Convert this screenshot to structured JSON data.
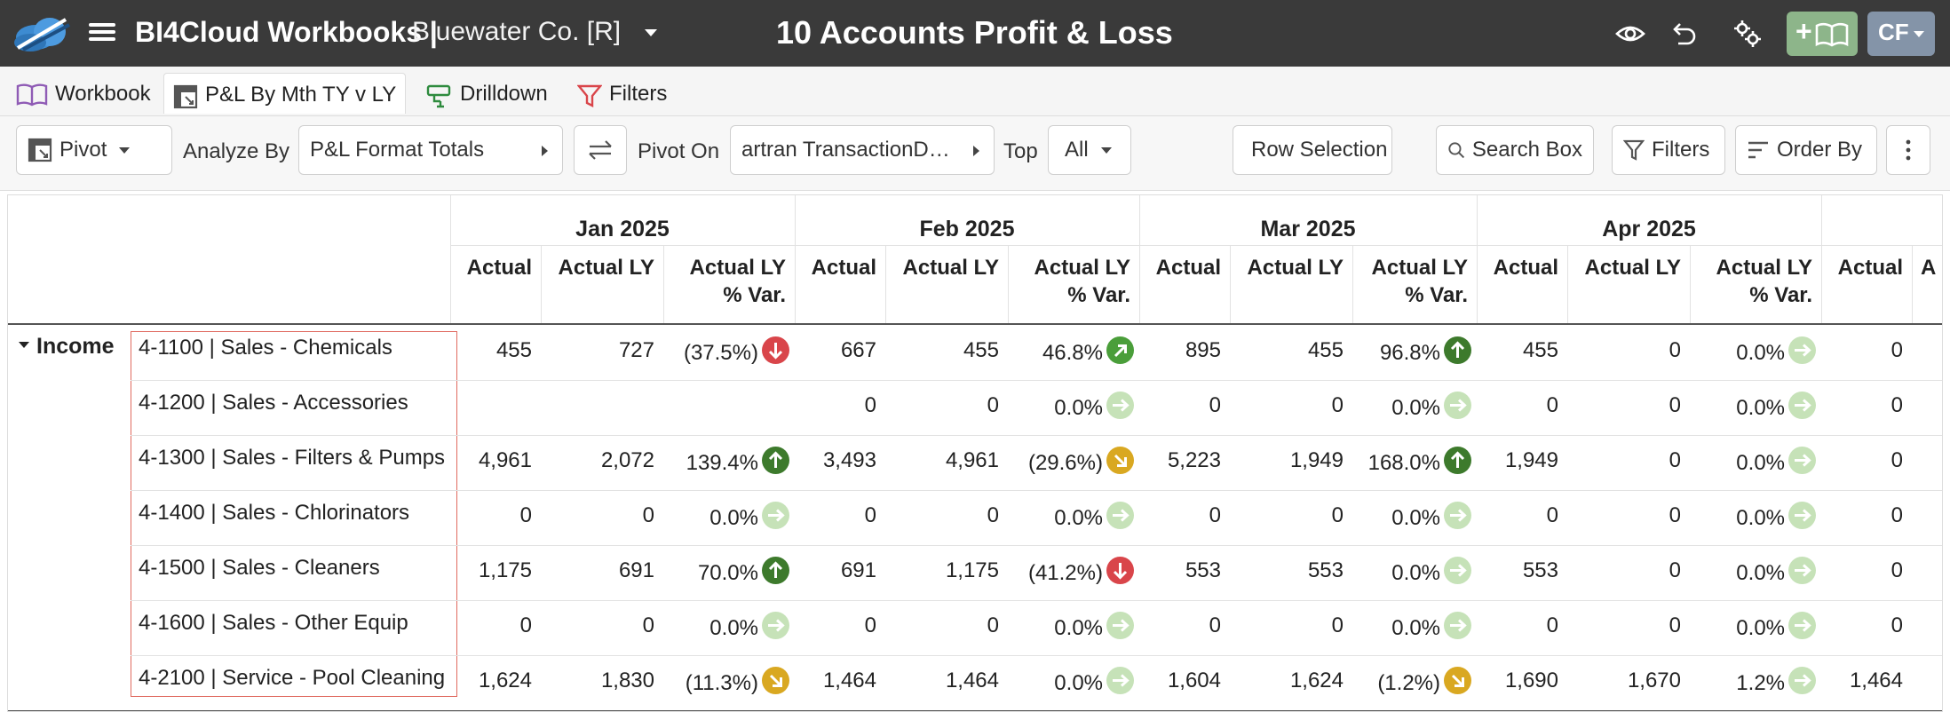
{
  "header": {
    "app_title": "BI4Cloud Workbooks |",
    "company": "Bluewater Co. [R]",
    "report_title": "10 Accounts Profit & Loss",
    "user_initials": "CF",
    "book_button_plus": "+"
  },
  "tabs": [
    {
      "label": "Workbook",
      "icon": "book-icon"
    },
    {
      "label": "P&L By Mth TY v LY",
      "icon": "pivot-icon"
    },
    {
      "label": "Drilldown",
      "icon": "drilldown-icon"
    },
    {
      "label": "Filters",
      "icon": "filter-icon"
    }
  ],
  "toolbar": {
    "pivot_label": "Pivot",
    "analyze_by_label": "Analyze By",
    "analyze_by_value": "P&L Format Totals",
    "pivot_on_label": "Pivot On",
    "pivot_on_value": "artran TransactionD…",
    "top_label": "Top",
    "top_value": "All",
    "row_selection": "Row Selection",
    "search_box": "Search Box",
    "filters": "Filters",
    "order_by": "Order By"
  },
  "grid": {
    "months": [
      "Jan 2025",
      "Feb 2025",
      "Mar 2025",
      "Apr 2025"
    ],
    "column_headers": {
      "actual": "Actual",
      "actual_ly": "Actual LY",
      "var_line1": "Actual LY",
      "var_line2": "% Var.",
      "truncated": "A"
    },
    "group_label": "Income",
    "rows": [
      {
        "account": "4-1100 | Sales - Chemicals",
        "jan": {
          "a": "455",
          "ly": "727",
          "var": "(37.5%)",
          "ind": "down"
        },
        "feb": {
          "a": "667",
          "ly": "455",
          "var": "46.8%",
          "ind": "up-lt"
        },
        "mar": {
          "a": "895",
          "ly": "455",
          "var": "96.8%",
          "ind": "up-dk"
        },
        "apr": {
          "a": "455",
          "ly": "0",
          "var": "0.0%",
          "ind": "flat"
        },
        "next": "0"
      },
      {
        "account": "4-1200 | Sales - Accessories",
        "jan": {
          "a": "",
          "ly": "",
          "var": "",
          "ind": ""
        },
        "feb": {
          "a": "0",
          "ly": "0",
          "var": "0.0%",
          "ind": "flat"
        },
        "mar": {
          "a": "0",
          "ly": "0",
          "var": "0.0%",
          "ind": "flat"
        },
        "apr": {
          "a": "0",
          "ly": "0",
          "var": "0.0%",
          "ind": "flat"
        },
        "next": "0"
      },
      {
        "account": "4-1300 | Sales - Filters & Pumps",
        "jan": {
          "a": "4,961",
          "ly": "2,072",
          "var": "139.4%",
          "ind": "up-dk"
        },
        "feb": {
          "a": "3,493",
          "ly": "4,961",
          "var": "(29.6%)",
          "ind": "diag-dn"
        },
        "mar": {
          "a": "5,223",
          "ly": "1,949",
          "var": "168.0%",
          "ind": "up-dk"
        },
        "apr": {
          "a": "1,949",
          "ly": "0",
          "var": "0.0%",
          "ind": "flat"
        },
        "next": "0"
      },
      {
        "account": "4-1400 | Sales - Chlorinators",
        "jan": {
          "a": "0",
          "ly": "0",
          "var": "0.0%",
          "ind": "flat"
        },
        "feb": {
          "a": "0",
          "ly": "0",
          "var": "0.0%",
          "ind": "flat"
        },
        "mar": {
          "a": "0",
          "ly": "0",
          "var": "0.0%",
          "ind": "flat"
        },
        "apr": {
          "a": "0",
          "ly": "0",
          "var": "0.0%",
          "ind": "flat"
        },
        "next": "0"
      },
      {
        "account": "4-1500 | Sales - Cleaners",
        "jan": {
          "a": "1,175",
          "ly": "691",
          "var": "70.0%",
          "ind": "up-dk"
        },
        "feb": {
          "a": "691",
          "ly": "1,175",
          "var": "(41.2%)",
          "ind": "down"
        },
        "mar": {
          "a": "553",
          "ly": "553",
          "var": "0.0%",
          "ind": "flat"
        },
        "apr": {
          "a": "553",
          "ly": "0",
          "var": "0.0%",
          "ind": "flat"
        },
        "next": "0"
      },
      {
        "account": "4-1600 | Sales - Other Equip",
        "jan": {
          "a": "0",
          "ly": "0",
          "var": "0.0%",
          "ind": "flat"
        },
        "feb": {
          "a": "0",
          "ly": "0",
          "var": "0.0%",
          "ind": "flat"
        },
        "mar": {
          "a": "0",
          "ly": "0",
          "var": "0.0%",
          "ind": "flat"
        },
        "apr": {
          "a": "0",
          "ly": "0",
          "var": "0.0%",
          "ind": "flat"
        },
        "next": "0"
      },
      {
        "account": "4-2100 | Service - Pool Cleaning",
        "jan": {
          "a": "1,624",
          "ly": "1,830",
          "var": "(11.3%)",
          "ind": "diag-dn"
        },
        "feb": {
          "a": "1,464",
          "ly": "1,464",
          "var": "0.0%",
          "ind": "flat"
        },
        "mar": {
          "a": "1,604",
          "ly": "1,624",
          "var": "(1.2%)",
          "ind": "diag-dn"
        },
        "apr": {
          "a": "1,690",
          "ly": "1,670",
          "var": "1.2%",
          "ind": "flat"
        },
        "next": "1,464"
      }
    ]
  }
}
